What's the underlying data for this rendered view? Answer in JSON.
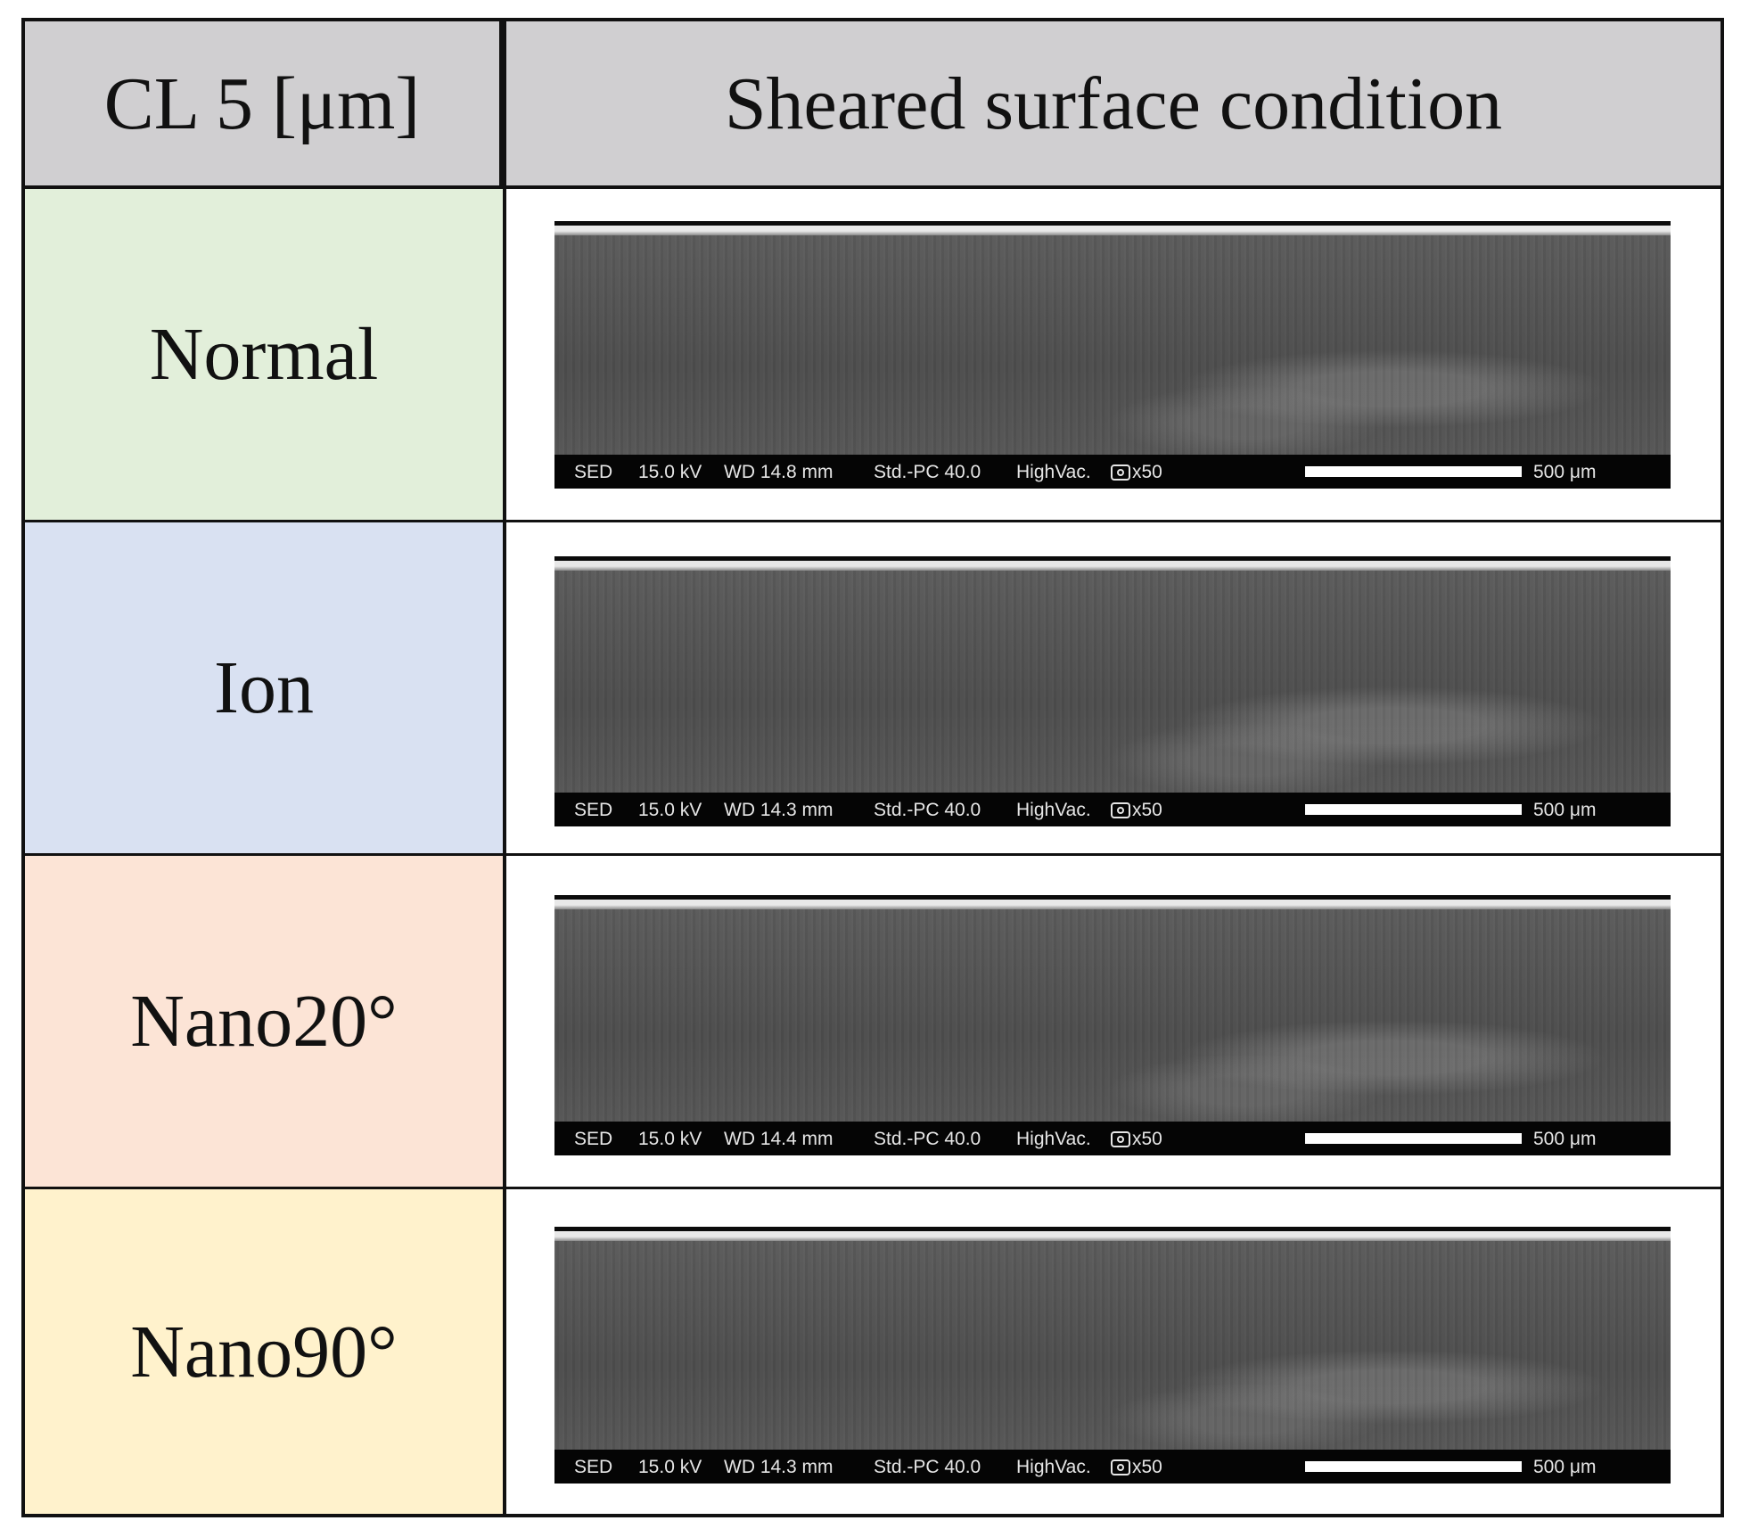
{
  "header": {
    "col1": "CL 5 [μm]",
    "col2": "Sheared surface condition"
  },
  "rows": [
    {
      "label": "Normal",
      "color": "#e2efda",
      "sem": {
        "detector": "SED",
        "kv": "15.0 kV",
        "wd": "WD 14.8 mm",
        "mode": "Std.-PC 40.0",
        "vac": "HighVac.",
        "mag": "x50",
        "scale": "500 μm"
      }
    },
    {
      "label": "Ion",
      "color": "#d9e1f2",
      "sem": {
        "detector": "SED",
        "kv": "15.0 kV",
        "wd": "WD 14.3 mm",
        "mode": "Std.-PC 40.0",
        "vac": "HighVac.",
        "mag": "x50",
        "scale": "500 μm"
      }
    },
    {
      "label": "Nano20°",
      "color": "#fce4d6",
      "sem": {
        "detector": "SED",
        "kv": "15.0 kV",
        "wd": "WD 14.4 mm",
        "mode": "Std.-PC 40.0",
        "vac": "HighVac.",
        "mag": "x50",
        "scale": "500 μm"
      }
    },
    {
      "label": "Nano90°",
      "color": "#fff2cc",
      "sem": {
        "detector": "SED",
        "kv": "15.0 kV",
        "wd": "WD 14.3 mm",
        "mode": "Std.-PC 40.0",
        "vac": "HighVac.",
        "mag": "x50",
        "scale": "500 μm"
      }
    }
  ]
}
